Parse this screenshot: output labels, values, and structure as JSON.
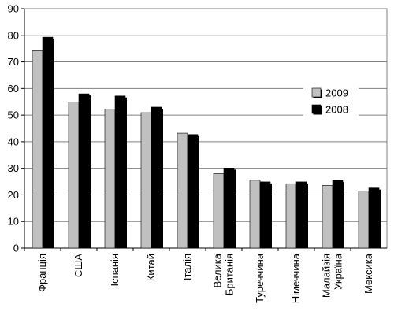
{
  "chart_data": {
    "type": "bar",
    "title": "",
    "xlabel": "",
    "ylabel": "",
    "ylim": [
      0,
      90
    ],
    "yticks": [
      0,
      10,
      20,
      30,
      40,
      50,
      60,
      70,
      80,
      90
    ],
    "grid": true,
    "legend_position": "right",
    "categories": [
      [
        "Франція"
      ],
      [
        "США"
      ],
      [
        "Іспанія"
      ],
      [
        "Китай"
      ],
      [
        "Італія"
      ],
      [
        "Велика",
        "Британія"
      ],
      [
        "Туреччина"
      ],
      [
        "Німеччина"
      ],
      [
        "Малайзія",
        "Україна"
      ],
      [
        "Мексика"
      ]
    ],
    "series": [
      {
        "name": "2009",
        "color": "#c0c0c0",
        "values": [
          74.2,
          54.9,
          52.2,
          50.9,
          43.2,
          28.0,
          25.5,
          24.2,
          23.6,
          21.5
        ]
      },
      {
        "name": "2008",
        "color": "#000000",
        "values": [
          79.3,
          58.0,
          57.2,
          53.0,
          42.7,
          30.1,
          24.9,
          24.9,
          25.4,
          22.6
        ]
      }
    ]
  }
}
